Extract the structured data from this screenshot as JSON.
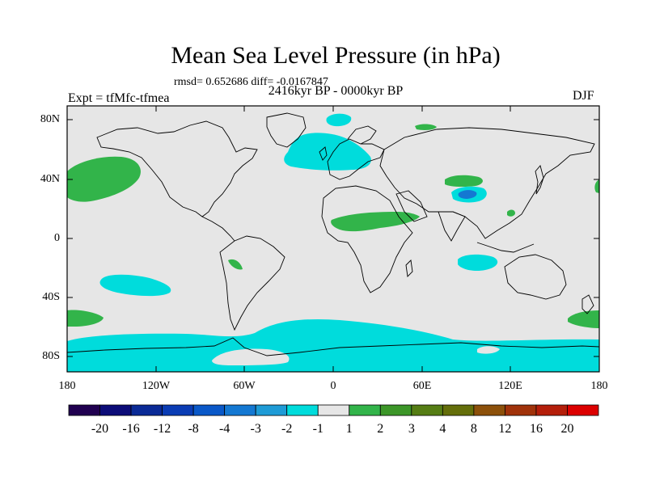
{
  "header": {
    "title": "Mean Sea Level Pressure (in hPa)",
    "stats": "rmsd= 0.652686 diff= -0.0167847",
    "period": "2416kyr BP - 0000kyr BP",
    "experiment": "Expt = tfMfc-tfmea",
    "season": "DJF"
  },
  "map": {
    "projection": "cylindrical-equidistant",
    "lon_range": [
      -180,
      180
    ],
    "lat_range": [
      -90,
      90
    ],
    "lat_ticks": [
      "80N",
      "40N",
      "0",
      "40S",
      "80S"
    ],
    "lon_ticks": [
      "180",
      "120W",
      "60W",
      "0",
      "60E",
      "120E",
      "180"
    ],
    "background_color": "#e6e6e6",
    "coastline_color": "#000000",
    "anomaly_regions": [
      {
        "name": "north-pacific-positive",
        "category": "1 to 2",
        "color": "#32b44a"
      },
      {
        "name": "north-atlantic-negative",
        "category": "-2 to -1",
        "color": "#00dcdc"
      },
      {
        "name": "greenland-negative",
        "category": "-2 to -1",
        "color": "#00dcdc"
      },
      {
        "name": "barents-positive",
        "category": "1 to 2",
        "color": "#32b44a"
      },
      {
        "name": "sahara-positive",
        "category": "1 to 2",
        "color": "#32b44a"
      },
      {
        "name": "central-asia-positive",
        "category": "1 to 2",
        "color": "#32b44a"
      },
      {
        "name": "tibet-negative",
        "category": "-4 to -1",
        "color": "#2b9bd6"
      },
      {
        "name": "bolivia-positive",
        "category": "1 to 2",
        "color": "#32b44a"
      },
      {
        "name": "south-pacific-negative",
        "category": "-2 to -1",
        "color": "#00dcdc"
      },
      {
        "name": "southeast-pacific-positive",
        "category": "1 to 2",
        "color": "#32b44a"
      },
      {
        "name": "east-indian-ocean-negative",
        "category": "-2 to -1",
        "color": "#00dcdc"
      },
      {
        "name": "tasman-positive",
        "category": "1 to 2",
        "color": "#32b44a"
      },
      {
        "name": "southern-ocean-negative",
        "category": "-2 to -1",
        "color": "#00dcdc"
      }
    ]
  },
  "colorbar": {
    "labels": [
      "-20",
      "-16",
      "-12",
      "-8",
      "-4",
      "-3",
      "-2",
      "-1",
      "1",
      "2",
      "3",
      "4",
      "8",
      "12",
      "16",
      "20"
    ],
    "colors": [
      "#200050",
      "#0c0c78",
      "#0a2a96",
      "#0a3cb4",
      "#0a58c8",
      "#1478d2",
      "#1e9bd6",
      "#00dcdc",
      "#e6e6e6",
      "#32b44a",
      "#3c9628",
      "#557d14",
      "#646e0a",
      "#8c500a",
      "#a0320a",
      "#b41e0a",
      "#dc0000"
    ]
  }
}
